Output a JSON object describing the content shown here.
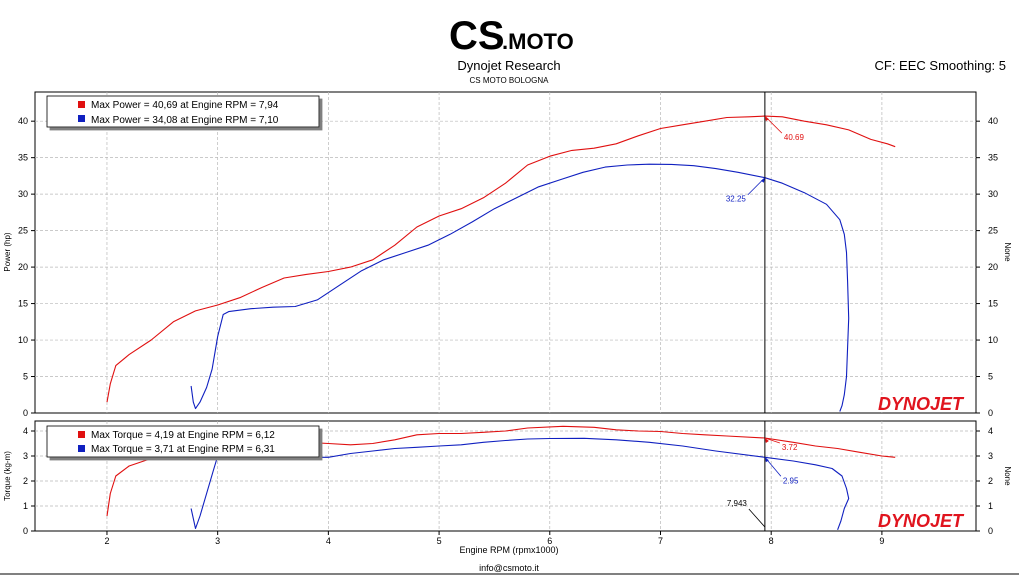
{
  "header": {
    "logo_text": "CS.MOTO",
    "title": "Dynojet Research",
    "subtitle": "CS MOTO BOLOGNA",
    "cf_label": "CF: EEC Smoothing: 5",
    "footer": "info@csmoto.it"
  },
  "brand": {
    "dynojet": "DYNOJET",
    "color": "#e0141e"
  },
  "colors": {
    "red": "#e01010",
    "blue": "#1020c0"
  },
  "cursor": {
    "rpm": 7.943,
    "label": "7,943",
    "power_red_label": "40.69",
    "power_blue_label": "32.25",
    "torque_red_label": "3.72",
    "torque_blue_label": "2.95"
  },
  "chart_data": [
    {
      "type": "line",
      "xlabel": "Engine RPM (rpmx1000)",
      "ylabel": "Power (hp)",
      "ylabel_right": "None",
      "xlim": [
        1.35,
        9.85
      ],
      "ylim": [
        0,
        44
      ],
      "y_ticks": [
        "0",
        "5",
        "10",
        "15",
        "20",
        "25",
        "30",
        "35",
        "40"
      ],
      "grid": true,
      "legend": [
        "Max Power = 40,69 at Engine RPM = 7,94",
        "Max Power = 34,08 at Engine RPM = 7,10"
      ],
      "legend_position": "top-left",
      "series": [
        {
          "color": "red",
          "points": [
            [
              2.0,
              1.5
            ],
            [
              2.03,
              4
            ],
            [
              2.08,
              6.5
            ],
            [
              2.2,
              8
            ],
            [
              2.4,
              10
            ],
            [
              2.6,
              12.5
            ],
            [
              2.8,
              14
            ],
            [
              3.0,
              14.8
            ],
            [
              3.2,
              15.8
            ],
            [
              3.4,
              17.2
            ],
            [
              3.6,
              18.5
            ],
            [
              3.8,
              19
            ],
            [
              4.0,
              19.4
            ],
            [
              4.2,
              20
            ],
            [
              4.4,
              21
            ],
            [
              4.6,
              23
            ],
            [
              4.8,
              25.5
            ],
            [
              5.0,
              27
            ],
            [
              5.2,
              28
            ],
            [
              5.4,
              29.5
            ],
            [
              5.6,
              31.5
            ],
            [
              5.8,
              34
            ],
            [
              6.0,
              35.2
            ],
            [
              6.2,
              36
            ],
            [
              6.4,
              36.3
            ],
            [
              6.6,
              36.9
            ],
            [
              6.8,
              38
            ],
            [
              7.0,
              39
            ],
            [
              7.2,
              39.5
            ],
            [
              7.4,
              40
            ],
            [
              7.6,
              40.5
            ],
            [
              7.8,
              40.6
            ],
            [
              7.94,
              40.69
            ],
            [
              8.1,
              40.6
            ],
            [
              8.3,
              40
            ],
            [
              8.5,
              39.5
            ],
            [
              8.7,
              38.8
            ],
            [
              8.9,
              37.5
            ],
            [
              9.05,
              36.9
            ],
            [
              9.12,
              36.5
            ]
          ]
        },
        {
          "color": "blue",
          "points": [
            [
              2.76,
              3.7
            ],
            [
              2.78,
              1.5
            ],
            [
              2.8,
              0.6
            ],
            [
              2.84,
              1.5
            ],
            [
              2.9,
              3.5
            ],
            [
              2.95,
              6
            ],
            [
              3.0,
              10.5
            ],
            [
              3.05,
              13.5
            ],
            [
              3.1,
              13.9
            ],
            [
              3.3,
              14.3
            ],
            [
              3.5,
              14.5
            ],
            [
              3.7,
              14.6
            ],
            [
              3.9,
              15.5
            ],
            [
              4.1,
              17.5
            ],
            [
              4.3,
              19.5
            ],
            [
              4.5,
              21
            ],
            [
              4.7,
              22
            ],
            [
              4.9,
              23
            ],
            [
              5.1,
              24.5
            ],
            [
              5.3,
              26.2
            ],
            [
              5.5,
              28
            ],
            [
              5.7,
              29.5
            ],
            [
              5.9,
              31
            ],
            [
              6.1,
              32
            ],
            [
              6.3,
              33
            ],
            [
              6.5,
              33.7
            ],
            [
              6.7,
              34
            ],
            [
              6.9,
              34.1
            ],
            [
              7.1,
              34.08
            ],
            [
              7.3,
              33.9
            ],
            [
              7.5,
              33.5
            ],
            [
              7.7,
              33
            ],
            [
              7.943,
              32.25
            ],
            [
              8.1,
              31.5
            ],
            [
              8.3,
              30.2
            ],
            [
              8.5,
              28.6
            ],
            [
              8.62,
              26.5
            ],
            [
              8.66,
              24.5
            ],
            [
              8.68,
              22
            ],
            [
              8.69,
              18
            ],
            [
              8.7,
              13
            ],
            [
              8.69,
              9
            ],
            [
              8.68,
              5
            ],
            [
              8.66,
              2.5
            ],
            [
              8.64,
              1
            ],
            [
              8.62,
              0.2
            ]
          ]
        }
      ]
    },
    {
      "type": "line",
      "xlabel": "Engine RPM (rpmx1000)",
      "ylabel": "Torque (kg-m)",
      "ylabel_right": "None",
      "xlim": [
        1.35,
        9.85
      ],
      "ylim": [
        0,
        4.4
      ],
      "x_ticks": [
        "2",
        "3",
        "4",
        "5",
        "6",
        "7",
        "8",
        "9"
      ],
      "y_ticks": [
        "0",
        "1",
        "2",
        "3",
        "4"
      ],
      "grid": true,
      "legend": [
        "Max Torque = 4,19 at Engine RPM = 6,12",
        "Max Torque = 3,71 at Engine RPM = 6,31"
      ],
      "legend_position": "top-left",
      "series": [
        {
          "color": "red",
          "points": [
            [
              2.0,
              0.6
            ],
            [
              2.03,
              1.5
            ],
            [
              2.08,
              2.2
            ],
            [
              2.2,
              2.6
            ],
            [
              2.4,
              2.9
            ],
            [
              2.6,
              3.05
            ],
            [
              2.8,
              3.2
            ],
            [
              3.0,
              3.3
            ],
            [
              3.2,
              3.35
            ],
            [
              3.4,
              3.5
            ],
            [
              3.6,
              3.6
            ],
            [
              3.8,
              3.55
            ],
            [
              4.0,
              3.5
            ],
            [
              4.2,
              3.45
            ],
            [
              4.4,
              3.5
            ],
            [
              4.6,
              3.65
            ],
            [
              4.8,
              3.85
            ],
            [
              5.0,
              3.9
            ],
            [
              5.2,
              3.9
            ],
            [
              5.4,
              3.95
            ],
            [
              5.6,
              4.0
            ],
            [
              5.8,
              4.12
            ],
            [
              6.12,
              4.19
            ],
            [
              6.4,
              4.15
            ],
            [
              6.6,
              4.05
            ],
            [
              6.8,
              4.0
            ],
            [
              7.0,
              3.98
            ],
            [
              7.2,
              3.9
            ],
            [
              7.4,
              3.85
            ],
            [
              7.6,
              3.8
            ],
            [
              7.943,
              3.72
            ],
            [
              8.2,
              3.55
            ],
            [
              8.4,
              3.4
            ],
            [
              8.6,
              3.3
            ],
            [
              8.8,
              3.15
            ],
            [
              9.0,
              3.0
            ],
            [
              9.12,
              2.95
            ]
          ]
        },
        {
          "color": "blue",
          "points": [
            [
              2.76,
              0.9
            ],
            [
              2.78,
              0.5
            ],
            [
              2.8,
              0.1
            ],
            [
              2.84,
              0.6
            ],
            [
              2.9,
              1.5
            ],
            [
              2.96,
              2.4
            ],
            [
              3.0,
              3.0
            ],
            [
              3.05,
              3.3
            ],
            [
              3.2,
              3.2
            ],
            [
              3.4,
              3.1
            ],
            [
              3.6,
              3.0
            ],
            [
              3.8,
              2.95
            ],
            [
              4.0,
              2.95
            ],
            [
              4.2,
              3.1
            ],
            [
              4.4,
              3.2
            ],
            [
              4.6,
              3.3
            ],
            [
              4.8,
              3.35
            ],
            [
              5.0,
              3.4
            ],
            [
              5.2,
              3.45
            ],
            [
              5.4,
              3.55
            ],
            [
              5.6,
              3.62
            ],
            [
              5.8,
              3.68
            ],
            [
              6.0,
              3.7
            ],
            [
              6.31,
              3.71
            ],
            [
              6.6,
              3.65
            ],
            [
              6.9,
              3.55
            ],
            [
              7.2,
              3.4
            ],
            [
              7.5,
              3.2
            ],
            [
              7.943,
              2.95
            ],
            [
              8.2,
              2.8
            ],
            [
              8.4,
              2.65
            ],
            [
              8.55,
              2.5
            ],
            [
              8.64,
              2.2
            ],
            [
              8.68,
              1.7
            ],
            [
              8.7,
              1.3
            ],
            [
              8.66,
              0.9
            ],
            [
              8.63,
              0.4
            ],
            [
              8.6,
              0.05
            ]
          ]
        }
      ]
    }
  ]
}
